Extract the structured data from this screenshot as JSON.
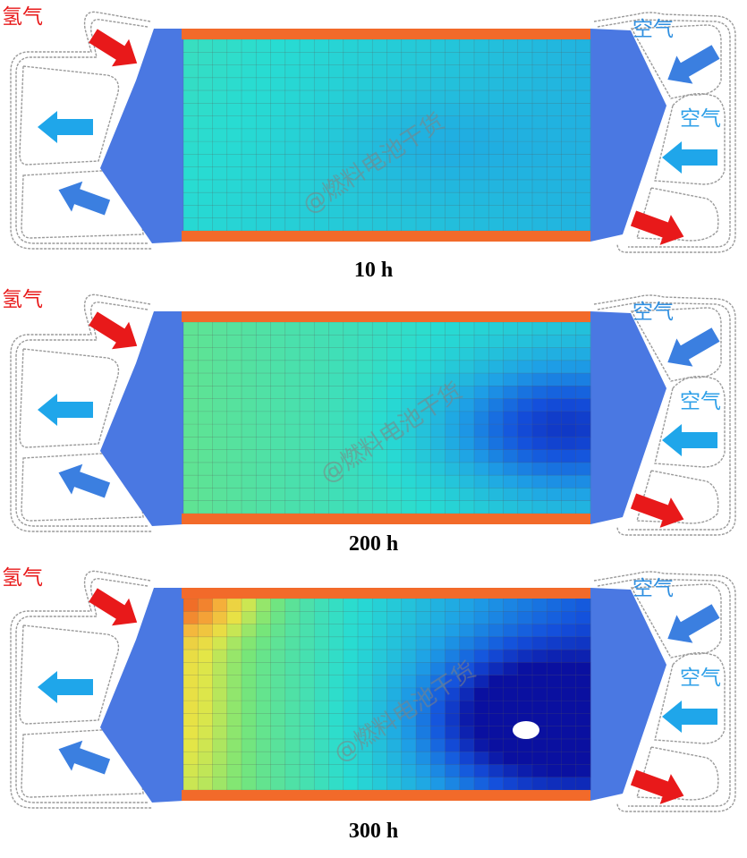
{
  "labels": {
    "hydrogen": "氢气",
    "air": "空气"
  },
  "watermark": "@燃料电池干货",
  "panels": [
    {
      "caption": "10 h"
    },
    {
      "caption": "200 h"
    },
    {
      "caption": "300 h"
    }
  ],
  "colors": {
    "manifold": "#4a78e2",
    "gasket_stripe": "#f26a2a",
    "arrow_hydrogen": "#e8191a",
    "arrow_air_blue": "#3b7fe0",
    "arrow_outlet": "#1fa6ea",
    "plate_outline": "#9a9a9a"
  },
  "colormap": [
    "#0a10a0",
    "#1450dc",
    "#1ea0e6",
    "#28dcd2",
    "#78e678",
    "#e6e646",
    "#f5b43c",
    "#f06e28"
  ]
}
